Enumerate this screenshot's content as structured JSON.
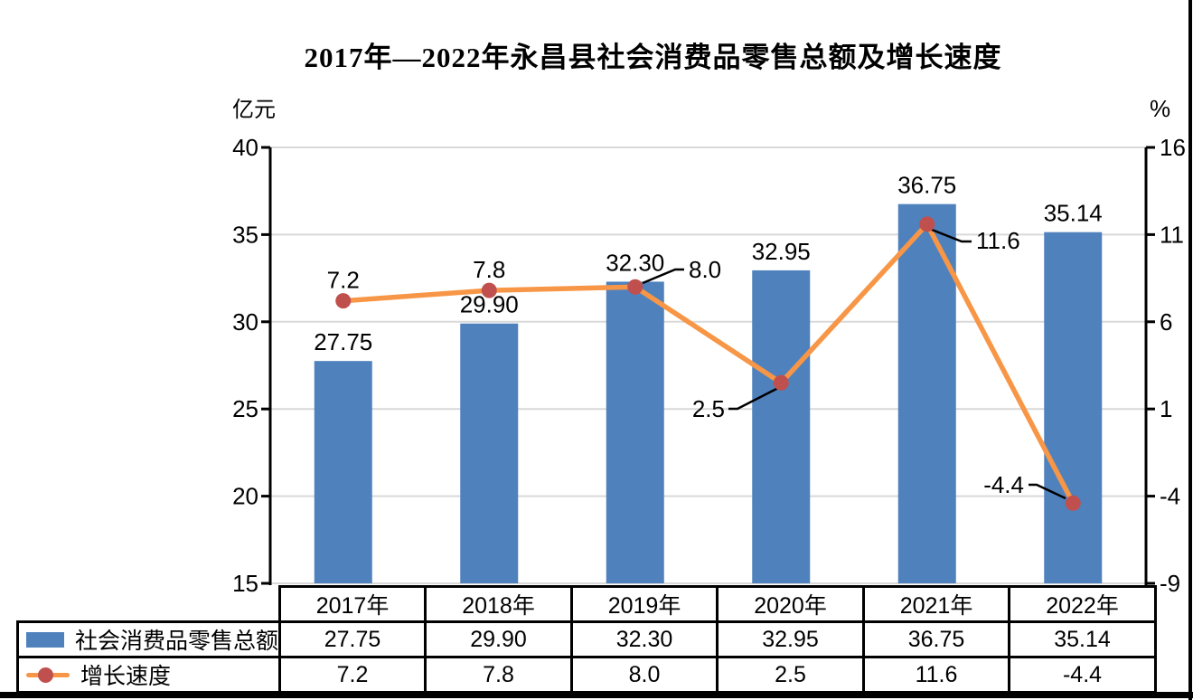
{
  "chart_data": {
    "type": "combo-bar-line",
    "title": "2017年—2022年永昌县社会消费品零售总额及增长速度",
    "categories": [
      "2017年",
      "2018年",
      "2019年",
      "2020年",
      "2021年",
      "2022年"
    ],
    "series": [
      {
        "name": "社会消费品零售总额",
        "chart_type": "bar",
        "axis": "left",
        "values": [
          27.75,
          29.9,
          32.3,
          32.95,
          36.75,
          35.14
        ],
        "labels": [
          "27.75",
          "29.90",
          "32.30",
          "32.95",
          "36.75",
          "35.14"
        ],
        "color": "#4F81BD"
      },
      {
        "name": "增长速度",
        "chart_type": "line",
        "axis": "right",
        "values": [
          7.2,
          7.8,
          8.0,
          2.5,
          11.6,
          -4.4
        ],
        "labels": [
          "7.2",
          "7.8",
          "8.0",
          "2.5",
          "11.6",
          "-4.4"
        ],
        "color": "#F79646",
        "marker_color": "#C0504D"
      }
    ],
    "left_axis": {
      "unit_label": "亿元",
      "min": 15,
      "max": 40,
      "ticks": [
        40,
        35,
        30,
        25,
        20,
        15
      ]
    },
    "right_axis": {
      "unit_label": "%",
      "min": -9,
      "max": 16,
      "ticks": [
        16,
        11,
        6,
        1,
        -4,
        -9
      ]
    },
    "grid": true,
    "gridline_color": "#D9D9D9",
    "legend_position": "table-left"
  }
}
